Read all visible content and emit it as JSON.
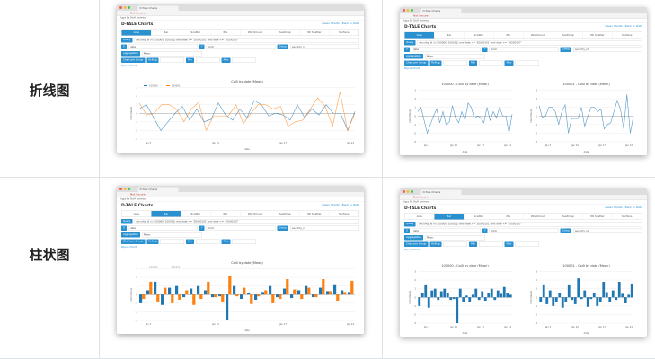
{
  "rows": [
    {
      "label": "折线图"
    },
    {
      "label": "柱状图"
    }
  ],
  "screenshot": {
    "window_tab": "D-Tale Charts",
    "url_warning": "Not Secure",
    "bookmarks": "Apps  Be Stuff  Reviews",
    "app_title": "D-TALE Charts",
    "header_links": "Lasso Charts | Back to Data",
    "tabs": [
      "Line",
      "Bar",
      "Scatter",
      "Pie",
      "Wordcloud",
      "Heatmap",
      "3D Scatter",
      "Surface"
    ],
    "query_label": "Query",
    "query_value": "security_id in (100000, 100001) and date >= '20000101' and date <= '20000107'",
    "x_label": "X",
    "x_value": "date",
    "y_label": "Y",
    "y_value": "Col0",
    "group_label": "Group",
    "group_value": "security_id",
    "aggregation_label": "Aggregation",
    "aggregation_value": "Mean",
    "chart_per_group_label": "Chart per Group",
    "rolling_label": "Rolling",
    "min_label": "Min",
    "max_label": "Max",
    "popup_label": "Popup Chart",
    "chart_title": "Col0 by date (Mean)",
    "xlabel": "date",
    "ylabel": "Col0 (Mean)",
    "xticks": [
      "Jan 3\n2000",
      "Jan 10",
      "Jan 17",
      "Jan 24"
    ]
  },
  "chart_data": [
    {
      "type": "line",
      "title": "Col0 by date (Mean)",
      "series": [
        {
          "name": "100000",
          "color": "#1f77b4",
          "values": [
            0.5,
            1,
            -0.5,
            -2,
            -1,
            0,
            0.8,
            -0.8,
            0.5,
            -1,
            -0.7,
            1.2,
            -0.2,
            -0.8,
            0.5,
            -0.5,
            1.5,
            1,
            -0.3,
            0,
            -0.2,
            -0.8,
            1,
            -0.5,
            0.5,
            -0.2,
            1,
            0,
            0,
            -2,
            0.2
          ]
        },
        {
          "name": "100001",
          "color": "#ff7f0e",
          "values": [
            1.2,
            -0.2,
            0,
            1,
            1,
            0.5,
            -1,
            0.5,
            1.3,
            -2,
            -0.3,
            -0.3,
            -0.3,
            1,
            -1.2,
            0,
            1,
            1,
            0.5,
            0.8,
            -1.5,
            -1,
            -0.8,
            0.5,
            1.8,
            0.8,
            -1.5,
            2.5,
            -2,
            0
          ]
        }
      ],
      "ylim": [
        -3,
        3
      ]
    },
    {
      "type": "line",
      "subplots": [
        {
          "title": "100000 - Col0 by date (Mean)",
          "values": [
            0.5,
            1,
            -0.5,
            -2,
            -1,
            0,
            0.8,
            -0.8,
            0.5,
            -1,
            -0.7,
            1.2,
            -0.2,
            -0.8,
            0.5,
            -0.5,
            1.5,
            1,
            -0.3,
            0,
            -0.2,
            -0.8,
            1,
            -0.5,
            0.5,
            -0.2,
            1,
            0,
            0,
            -2,
            0.2
          ]
        },
        {
          "title": "100001 - Col0 by date (Mean)",
          "values": [
            1.2,
            -0.2,
            0,
            1,
            1,
            0.5,
            -1,
            0.5,
            1.3,
            -2,
            -0.3,
            -0.3,
            -0.3,
            1,
            -1.2,
            0,
            1,
            1,
            0.5,
            0.8,
            -1.5,
            -1,
            -0.8,
            0.5,
            1.8,
            0.8,
            -1.5,
            2.5,
            -2,
            0
          ]
        }
      ],
      "ylim": [
        -3,
        3
      ]
    },
    {
      "type": "bar",
      "title": "Col0 by date (Mean)",
      "series": [
        {
          "name": "100000",
          "color": "#1f77b4",
          "values": [
            -1,
            0.5,
            1.5,
            -1.2,
            0.8,
            1,
            -0.3,
            0.7,
            1,
            0.5,
            -0.3,
            -0.2,
            -3,
            1,
            -0.5,
            0.2,
            -0.6,
            0.3,
            1,
            -0.3,
            0.7,
            -0.4,
            0.5,
            1,
            -0.3,
            0.8,
            0.4,
            1.2,
            0.5,
            0.3
          ]
        },
        {
          "name": "100001",
          "color": "#ff7f0e",
          "values": [
            -0.5,
            1.5,
            -0.8,
            0.8,
            -1,
            -0.6,
            0.5,
            -1.2,
            -0.5,
            1.5,
            -0.3,
            -0.8,
            2.2,
            -0.2,
            0.8,
            -1.1,
            -0.2,
            0.5,
            -1,
            -0.5,
            1.8,
            0.6,
            -0.5,
            0.8,
            -0.3,
            1.8,
            0.4,
            -0.7,
            0.3,
            1.6
          ]
        }
      ],
      "ylim": [
        -3,
        3
      ]
    },
    {
      "type": "bar",
      "subplots": [
        {
          "title": "100000 - Col0 by date (Mean)",
          "values": [
            -1,
            0.5,
            1.5,
            -1.2,
            0.8,
            1,
            -0.3,
            0.7,
            1,
            0.5,
            -0.3,
            -0.2,
            -3,
            1,
            -0.5,
            0.2,
            -0.6,
            0.3,
            1,
            -0.3,
            0.7,
            -0.4,
            0.5,
            1,
            -0.3,
            0.8,
            0.4,
            1.2,
            0.5,
            0.3
          ]
        },
        {
          "title": "100001 - Col0 by date (Mean)",
          "values": [
            -0.5,
            1.5,
            -0.8,
            0.8,
            -1,
            -0.6,
            0.5,
            -1.2,
            -0.5,
            1.5,
            -0.3,
            -0.8,
            2.2,
            -0.2,
            0.8,
            -1.1,
            -0.2,
            0.5,
            -1,
            -0.5,
            1.8,
            0.6,
            -0.5,
            0.8,
            -0.3,
            1.8,
            0.4,
            -0.7,
            0.3,
            1.6
          ]
        }
      ],
      "ylim": [
        -3,
        3
      ]
    }
  ]
}
